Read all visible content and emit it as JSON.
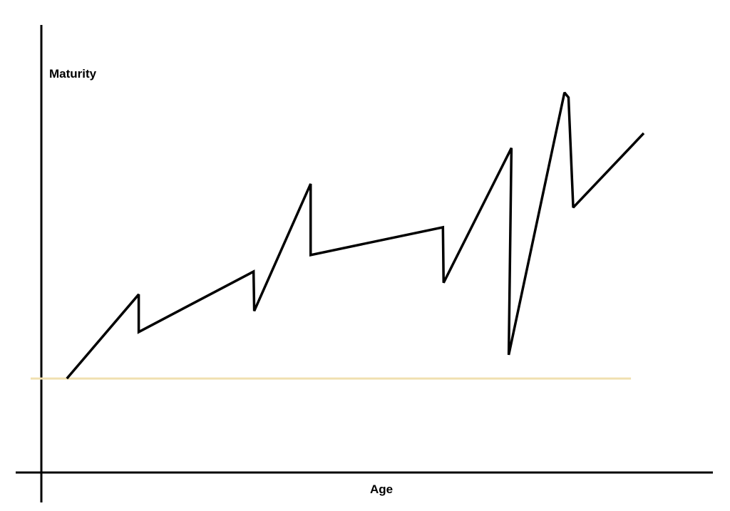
{
  "chart_data": {
    "type": "line",
    "title": "",
    "xlabel": "Age",
    "ylabel": "Maturity",
    "xlim": [
      0,
      100
    ],
    "ylim": [
      0,
      100
    ],
    "grid": false,
    "ticks": false,
    "series": [
      {
        "color": "#000000",
        "points": [
          [
            3.8,
            21.0
          ],
          [
            14.5,
            39.8
          ],
          [
            14.5,
            31.4
          ],
          [
            31.6,
            44.9
          ],
          [
            31.7,
            36.1
          ],
          [
            40.1,
            64.5
          ],
          [
            40.1,
            48.6
          ],
          [
            59.8,
            54.8
          ],
          [
            59.9,
            42.4
          ],
          [
            70.0,
            72.5
          ],
          [
            69.6,
            26.3
          ],
          [
            77.9,
            84.9
          ],
          [
            78.5,
            83.8
          ],
          [
            79.2,
            59.2
          ],
          [
            89.7,
            75.8
          ]
        ]
      }
    ],
    "reference_line": {
      "y": 21.0,
      "x_range": [
        -1.6,
        87.8
      ],
      "color": "#f0e0b0"
    }
  }
}
